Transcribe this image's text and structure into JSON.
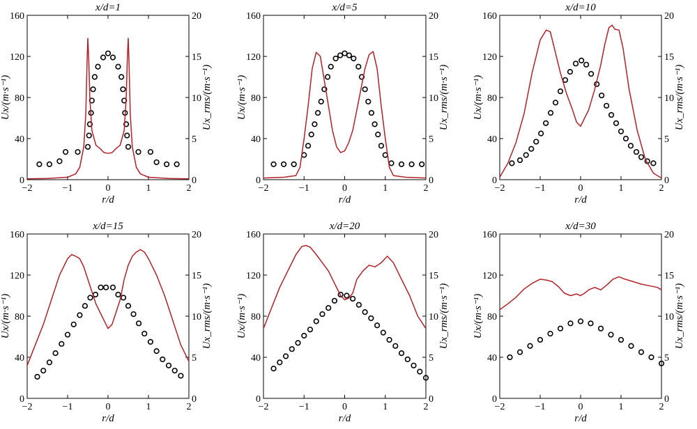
{
  "figure": {
    "colors": {
      "line": "#b22028",
      "marker": "#000000",
      "axis": "#000000"
    }
  },
  "chart_data": [
    {
      "type": "scatter+line",
      "title": "x/d=1",
      "xlabel": "r/d",
      "ylabel_left": "Ux/(m·s⁻¹)",
      "ylabel_right": "Ux_rms/(m·s⁻¹)",
      "xlim": [
        -2,
        2
      ],
      "ylim_left": [
        0,
        160
      ],
      "ylim_right": [
        0,
        20
      ],
      "xticks": [
        "−2",
        "−1",
        "0",
        "1",
        "2"
      ],
      "yticks_left": [
        "0",
        "40",
        "80",
        "120",
        "160"
      ],
      "yticks_right": [
        "0",
        "5",
        "10",
        "15",
        "20"
      ],
      "grid": false,
      "series": [
        {
          "kind": "scatter",
          "axis": "left",
          "marker": "open-circle",
          "x": [
            -1.7,
            -1.45,
            -1.2,
            -1.05,
            -0.75,
            -0.5,
            -0.47,
            -0.45,
            -0.42,
            -0.4,
            -0.37,
            -0.33,
            -0.25,
            -0.12,
            0,
            0.12,
            0.25,
            0.33,
            0.37,
            0.4,
            0.42,
            0.45,
            0.47,
            0.5,
            0.75,
            1.05,
            1.2,
            1.45,
            1.7
          ],
          "y": [
            15,
            15,
            18,
            27,
            27,
            32,
            43,
            54,
            65,
            77,
            88,
            100,
            110,
            119,
            123,
            119,
            110,
            100,
            88,
            77,
            65,
            54,
            43,
            32,
            27,
            27,
            17,
            15,
            15
          ]
        },
        {
          "kind": "line",
          "axis": "right",
          "x": [
            -2,
            -1.5,
            -1,
            -0.8,
            -0.7,
            -0.6,
            -0.55,
            -0.52,
            -0.5,
            -0.48,
            -0.45,
            -0.4,
            -0.3,
            -0.2,
            -0.1,
            0,
            0.1,
            0.2,
            0.3,
            0.4,
            0.45,
            0.48,
            0.5,
            0.52,
            0.55,
            0.6,
            0.7,
            0.8,
            1,
            1.5,
            2
          ],
          "y": [
            0.1,
            0.15,
            0.3,
            0.7,
            1.5,
            4,
            8,
            14,
            17.2,
            15,
            10,
            6,
            4.2,
            3.8,
            3.3,
            3.2,
            3.3,
            3.8,
            4.2,
            6,
            10,
            15,
            17.2,
            14,
            8,
            4,
            1.5,
            0.7,
            0.3,
            0.15,
            0.1
          ]
        }
      ]
    },
    {
      "type": "scatter+line",
      "title": "x/d=5",
      "xlabel": "r/d",
      "ylabel_left": "Ux/(m·s⁻¹)",
      "ylabel_right": "Ux_rms/(m·s⁻¹)",
      "xlim": [
        -2,
        2
      ],
      "ylim_left": [
        0,
        160
      ],
      "ylim_right": [
        0,
        20
      ],
      "xticks": [
        "−2",
        "−1",
        "0",
        "1",
        "2"
      ],
      "yticks_left": [
        "0",
        "40",
        "80",
        "120",
        "160"
      ],
      "yticks_right": [
        "0",
        "5",
        "10",
        "15",
        "20"
      ],
      "grid": false,
      "series": [
        {
          "kind": "scatter",
          "axis": "left",
          "marker": "open-circle",
          "x": [
            -1.75,
            -1.5,
            -1.25,
            -1.0,
            -0.9,
            -0.82,
            -0.74,
            -0.66,
            -0.58,
            -0.5,
            -0.42,
            -0.34,
            -0.22,
            -0.11,
            0,
            0.11,
            0.22,
            0.34,
            0.42,
            0.5,
            0.58,
            0.66,
            0.74,
            0.82,
            0.9,
            1.0,
            1.15,
            1.4,
            1.65,
            1.9
          ],
          "y": [
            15,
            15,
            15,
            24,
            33,
            44,
            54,
            65,
            76,
            88,
            100,
            110,
            118,
            121,
            123,
            121,
            118,
            110,
            100,
            88,
            76,
            65,
            54,
            44,
            33,
            24,
            16,
            15,
            15,
            15
          ]
        },
        {
          "kind": "line",
          "axis": "right",
          "x": [
            -2,
            -1.5,
            -1.2,
            -1.1,
            -1.0,
            -0.9,
            -0.8,
            -0.7,
            -0.6,
            -0.5,
            -0.4,
            -0.3,
            -0.2,
            -0.1,
            0,
            0.1,
            0.2,
            0.3,
            0.4,
            0.5,
            0.6,
            0.7,
            0.8,
            0.9,
            1.0,
            1.1,
            1.2,
            1.5,
            2
          ],
          "y": [
            0.2,
            0.3,
            0.5,
            1.5,
            5,
            9,
            13.5,
            15.5,
            15,
            12,
            9,
            6,
            4,
            3.3,
            3.5,
            4.5,
            6,
            8.5,
            11,
            13.5,
            15.2,
            15.6,
            13.5,
            9,
            5,
            1.5,
            0.5,
            0.3,
            0.2
          ]
        }
      ]
    },
    {
      "type": "scatter+line",
      "title": "x/d=10",
      "xlabel": "r/d",
      "ylabel_left": "Ux/(m·s⁻¹)",
      "ylabel_right": "Ux_rms/(m·s⁻¹)",
      "xlim": [
        -2,
        2
      ],
      "ylim_left": [
        0,
        160
      ],
      "ylim_right": [
        0,
        20
      ],
      "xticks": [
        "−2",
        "−1",
        "0",
        "1",
        "2"
      ],
      "yticks_left": [
        "0",
        "40",
        "80",
        "120",
        "160"
      ],
      "yticks_right": [
        "0",
        "5",
        "10",
        "15",
        "20"
      ],
      "grid": false,
      "series": [
        {
          "kind": "scatter",
          "axis": "left",
          "marker": "open-circle",
          "x": [
            -1.7,
            -1.5,
            -1.35,
            -1.22,
            -1.1,
            -0.98,
            -0.86,
            -0.74,
            -0.62,
            -0.5,
            -0.38,
            -0.26,
            -0.12,
            0.02,
            0.14,
            0.26,
            0.4,
            0.52,
            0.64,
            0.76,
            0.88,
            1.0,
            1.12,
            1.24,
            1.38,
            1.5,
            1.65,
            1.8
          ],
          "y": [
            16,
            19,
            24,
            30,
            37,
            45,
            55,
            65,
            75,
            86,
            97,
            105,
            113,
            116,
            112,
            103,
            93,
            82,
            72,
            63,
            55,
            47,
            40,
            33,
            27,
            22,
            18,
            16
          ]
        },
        {
          "kind": "line",
          "axis": "right",
          "x": [
            -2,
            -1.8,
            -1.6,
            -1.4,
            -1.2,
            -1.0,
            -0.85,
            -0.75,
            -0.65,
            -0.5,
            -0.35,
            -0.2,
            -0.1,
            0,
            0.1,
            0.2,
            0.35,
            0.5,
            0.6,
            0.7,
            0.78,
            0.85,
            0.95,
            1.05,
            1.2,
            1.4,
            1.6,
            1.8,
            2
          ],
          "y": [
            0.3,
            2,
            4.5,
            8,
            13,
            17,
            18.2,
            18,
            16,
            13,
            10.5,
            8.5,
            7,
            6.5,
            7.5,
            8.5,
            11,
            14,
            16.5,
            18.5,
            18.8,
            18.3,
            18.2,
            16,
            11,
            6,
            2.5,
            0.8,
            0.2
          ]
        }
      ]
    },
    {
      "type": "scatter+line",
      "title": "x/d=15",
      "xlabel": "r/d",
      "ylabel_left": "Ux/(m·s⁻¹)",
      "ylabel_right": "Ux_rms/(m·s⁻¹)",
      "xlim": [
        -2,
        2
      ],
      "ylim_left": [
        0,
        160
      ],
      "ylim_right": [
        0,
        20
      ],
      "xticks": [
        "−2",
        "−1",
        "0",
        "1",
        "2"
      ],
      "yticks_left": [
        "0",
        "40",
        "80",
        "120",
        "160"
      ],
      "yticks_right": [
        "0",
        "5",
        "10",
        "15",
        "20"
      ],
      "grid": false,
      "series": [
        {
          "kind": "scatter",
          "axis": "left",
          "marker": "open-circle",
          "x": [
            -1.75,
            -1.6,
            -1.45,
            -1.3,
            -1.15,
            -1.0,
            -0.85,
            -0.7,
            -0.57,
            -0.44,
            -0.31,
            -0.18,
            -0.05,
            0.12,
            0.25,
            0.38,
            0.5,
            0.63,
            0.76,
            0.9,
            1.05,
            1.2,
            1.35,
            1.5,
            1.65,
            1.8
          ],
          "y": [
            21,
            27,
            35,
            44,
            53,
            62,
            72,
            81,
            90,
            98,
            101,
            108,
            108,
            108,
            101,
            98,
            90,
            82,
            73,
            63,
            55,
            46,
            38,
            32,
            27,
            22
          ]
        },
        {
          "kind": "line",
          "axis": "right",
          "x": [
            -2,
            -1.8,
            -1.6,
            -1.4,
            -1.2,
            -1.0,
            -0.9,
            -0.8,
            -0.7,
            -0.6,
            -0.5,
            -0.4,
            -0.3,
            -0.2,
            -0.1,
            0,
            0.1,
            0.2,
            0.3,
            0.4,
            0.5,
            0.6,
            0.7,
            0.8,
            0.9,
            1.0,
            1.2,
            1.4,
            1.6,
            1.8,
            2
          ],
          "y": [
            4,
            6.5,
            9,
            12,
            15,
            17,
            17.5,
            17.3,
            17,
            16,
            14.5,
            13,
            11.5,
            10.5,
            9.5,
            8.5,
            9,
            10.5,
            12,
            14.5,
            16.2,
            17.3,
            17.8,
            18.1,
            17.8,
            17,
            15,
            12.5,
            9.5,
            6.5,
            4.5
          ]
        }
      ]
    },
    {
      "type": "scatter+line",
      "title": "x/d=20",
      "xlabel": "r/d",
      "ylabel_left": "Ux/(m·s⁻¹)",
      "ylabel_right": "Ux_rms/(m·s⁻¹)",
      "xlim": [
        -2,
        2
      ],
      "ylim_left": [
        0,
        160
      ],
      "ylim_right": [
        0,
        20
      ],
      "xticks": [
        "−2",
        "−1",
        "0",
        "1",
        "2"
      ],
      "yticks_left": [
        "0",
        "40",
        "80",
        "120",
        "160"
      ],
      "yticks_right": [
        "0",
        "5",
        "10",
        "15",
        "20"
      ],
      "grid": false,
      "series": [
        {
          "kind": "scatter",
          "axis": "left",
          "marker": "open-circle",
          "x": [
            -1.75,
            -1.6,
            -1.45,
            -1.3,
            -1.15,
            -1.0,
            -0.85,
            -0.7,
            -0.55,
            -0.4,
            -0.25,
            -0.1,
            0.05,
            0.2,
            0.35,
            0.5,
            0.65,
            0.8,
            0.95,
            1.1,
            1.25,
            1.4,
            1.55,
            1.7,
            1.85,
            2.0
          ],
          "y": [
            29,
            35,
            41,
            48,
            54,
            61,
            67,
            75,
            82,
            88,
            95,
            101,
            100,
            97,
            91,
            84,
            78,
            71,
            64,
            57,
            51,
            44,
            38,
            32,
            26,
            20
          ]
        },
        {
          "kind": "line",
          "axis": "right",
          "x": [
            -2,
            -1.8,
            -1.6,
            -1.4,
            -1.2,
            -1.05,
            -0.95,
            -0.85,
            -0.7,
            -0.55,
            -0.4,
            -0.25,
            -0.1,
            0,
            0.1,
            0.2,
            0.3,
            0.45,
            0.6,
            0.75,
            0.9,
            1.05,
            1.2,
            1.4,
            1.6,
            1.8,
            2
          ],
          "y": [
            8.5,
            11,
            13.5,
            15.5,
            17.5,
            18.5,
            18.6,
            18.4,
            17.5,
            16.5,
            15.5,
            14,
            12.5,
            12,
            12.2,
            12.8,
            14.5,
            15.5,
            16.2,
            16,
            16.5,
            17.3,
            16.5,
            14.5,
            12.5,
            10,
            8.5
          ]
        }
      ]
    },
    {
      "type": "scatter+line",
      "title": "x/d=30",
      "xlabel": "r/d",
      "ylabel_left": "Ux/(m·s⁻¹)",
      "ylabel_right": "Ux_rms/(m·s⁻¹)",
      "xlim": [
        -2,
        2
      ],
      "ylim_left": [
        0,
        160
      ],
      "ylim_right": [
        0,
        20
      ],
      "xticks": [
        "−2",
        "−1",
        "0",
        "1",
        "2"
      ],
      "yticks_left": [
        "0",
        "40",
        "80",
        "120",
        "160"
      ],
      "yticks_right": [
        "0",
        "5",
        "10",
        "15",
        "20"
      ],
      "grid": false,
      "series": [
        {
          "kind": "scatter",
          "axis": "left",
          "marker": "open-circle",
          "x": [
            -1.75,
            -1.5,
            -1.25,
            -1.0,
            -0.75,
            -0.5,
            -0.25,
            0,
            0.25,
            0.5,
            0.75,
            1.0,
            1.25,
            1.5,
            1.75,
            2.0
          ],
          "y": [
            40,
            45,
            51,
            57,
            63,
            68,
            73,
            75,
            73,
            68,
            62,
            57,
            51,
            45,
            40,
            34
          ]
        },
        {
          "kind": "line",
          "axis": "right",
          "x": [
            -2,
            -1.8,
            -1.6,
            -1.4,
            -1.2,
            -1.0,
            -0.85,
            -0.7,
            -0.55,
            -0.4,
            -0.25,
            -0.1,
            0,
            0.1,
            0.2,
            0.35,
            0.5,
            0.65,
            0.8,
            0.95,
            1.1,
            1.3,
            1.5,
            1.7,
            1.9,
            2
          ],
          "y": [
            10.8,
            11.5,
            12.3,
            13.3,
            14,
            14.5,
            14.4,
            14.2,
            13.6,
            12.8,
            12.5,
            12.7,
            12.5,
            12.8,
            13.2,
            13.5,
            13.2,
            13.8,
            14.5,
            14.8,
            14.5,
            14.2,
            13.9,
            13.7,
            13.5,
            13.2
          ]
        }
      ]
    }
  ]
}
